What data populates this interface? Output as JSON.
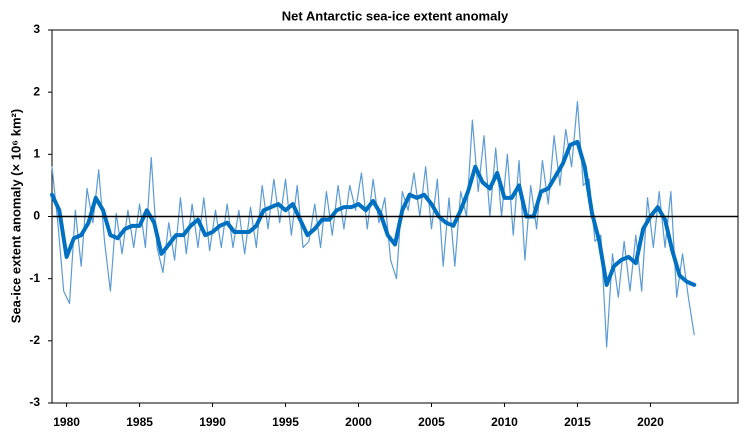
{
  "chart_data": {
    "type": "line",
    "title": "Net Antarctic sea-ice extent anomaly",
    "y_label": "Sea-ice extent anomaly (× 10⁶ km²)",
    "xlim": [
      1979,
      2026
    ],
    "xticks": [
      1980,
      1985,
      1990,
      1995,
      2000,
      2005,
      2010,
      2015,
      2020
    ],
    "ylim": [
      -3,
      3
    ],
    "yticks": [
      -3,
      -2,
      -1,
      0,
      1,
      2,
      3
    ],
    "zero_line": true,
    "series": [
      {
        "color": "#5b9bd5",
        "width": 1.2,
        "x": [
          1979.0,
          1979.4,
          1979.8,
          1980.2,
          1980.6,
          1981.0,
          1981.4,
          1981.8,
          1982.2,
          1982.6,
          1983.0,
          1983.4,
          1983.8,
          1984.2,
          1984.6,
          1985.0,
          1985.4,
          1985.8,
          1986.2,
          1986.6,
          1987.0,
          1987.4,
          1987.8,
          1988.2,
          1988.6,
          1989.0,
          1989.4,
          1989.8,
          1990.2,
          1990.6,
          1991.0,
          1991.4,
          1991.8,
          1992.2,
          1992.6,
          1993.0,
          1993.4,
          1993.8,
          1994.2,
          1994.6,
          1995.0,
          1995.4,
          1995.8,
          1996.2,
          1996.6,
          1997.0,
          1997.4,
          1997.8,
          1998.2,
          1998.6,
          1999.0,
          1999.4,
          1999.8,
          2000.2,
          2000.6,
          2001.0,
          2001.4,
          2001.8,
          2002.2,
          2002.6,
          2003.0,
          2003.4,
          2003.8,
          2004.2,
          2004.6,
          2005.0,
          2005.4,
          2005.8,
          2006.2,
          2006.6,
          2007.0,
          2007.4,
          2007.8,
          2008.2,
          2008.6,
          2009.0,
          2009.4,
          2009.8,
          2010.2,
          2010.6,
          2011.0,
          2011.4,
          2011.8,
          2012.2,
          2012.6,
          2013.0,
          2013.4,
          2013.8,
          2014.2,
          2014.6,
          2015.0,
          2015.4,
          2015.8,
          2016.2,
          2016.6,
          2017.0,
          2017.4,
          2017.8,
          2018.2,
          2018.6,
          2019.0,
          2019.4,
          2019.8,
          2020.2,
          2020.6,
          2021.0,
          2021.4,
          2021.8,
          2022.2,
          2022.6,
          2023.0
        ],
        "values": [
          0.8,
          -0.1,
          -1.2,
          -1.4,
          0.1,
          -0.8,
          0.45,
          -0.1,
          0.75,
          -0.4,
          -1.2,
          0.05,
          -0.6,
          0.1,
          -0.5,
          0.2,
          -0.5,
          0.95,
          -0.5,
          -0.9,
          -0.1,
          -0.7,
          0.3,
          -0.6,
          0.2,
          -0.5,
          0.3,
          -0.55,
          0.1,
          -0.5,
          0.2,
          -0.5,
          0.1,
          -0.6,
          0.15,
          -0.5,
          0.5,
          -0.2,
          0.6,
          -0.1,
          0.6,
          -0.3,
          0.5,
          -0.5,
          -0.4,
          0.2,
          -0.5,
          0.4,
          -0.3,
          0.5,
          -0.2,
          0.5,
          0.1,
          0.7,
          -0.2,
          0.6,
          -0.1,
          0.3,
          -0.7,
          -1.0,
          0.4,
          0.1,
          0.7,
          0.0,
          0.8,
          -0.2,
          0.6,
          -0.8,
          0.3,
          -0.8,
          0.4,
          0.0,
          1.55,
          0.4,
          1.3,
          0.0,
          1.1,
          0.0,
          1.0,
          -0.3,
          0.9,
          -0.7,
          0.5,
          -0.2,
          0.9,
          0.2,
          1.3,
          0.5,
          1.4,
          0.8,
          1.85,
          0.5,
          0.6,
          -0.4,
          -0.3,
          -2.1,
          -0.6,
          -1.3,
          -0.4,
          -1.2,
          -0.3,
          -1.2,
          0.3,
          -0.5,
          0.4,
          -0.5,
          0.4,
          -1.3,
          -0.6,
          -1.3,
          -1.9
        ]
      },
      {
        "color": "#0070c0",
        "width": 4,
        "x": [
          1979.0,
          1979.5,
          1980.0,
          1980.5,
          1981.0,
          1981.5,
          1982.0,
          1982.5,
          1983.0,
          1983.5,
          1984.0,
          1984.5,
          1985.0,
          1985.5,
          1986.0,
          1986.5,
          1987.0,
          1987.5,
          1988.0,
          1988.5,
          1989.0,
          1989.5,
          1990.0,
          1990.5,
          1991.0,
          1991.5,
          1992.0,
          1992.5,
          1993.0,
          1993.5,
          1994.0,
          1994.5,
          1995.0,
          1995.5,
          1996.0,
          1996.5,
          1997.0,
          1997.5,
          1998.0,
          1998.5,
          1999.0,
          1999.5,
          2000.0,
          2000.5,
          2001.0,
          2001.5,
          2002.0,
          2002.5,
          2003.0,
          2003.5,
          2004.0,
          2004.5,
          2005.0,
          2005.5,
          2006.0,
          2006.5,
          2007.0,
          2007.5,
          2008.0,
          2008.5,
          2009.0,
          2009.5,
          2010.0,
          2010.5,
          2011.0,
          2011.5,
          2012.0,
          2012.5,
          2013.0,
          2013.5,
          2014.0,
          2014.5,
          2015.0,
          2015.5,
          2016.0,
          2016.5,
          2017.0,
          2017.5,
          2018.0,
          2018.5,
          2019.0,
          2019.5,
          2020.0,
          2020.5,
          2021.0,
          2021.5,
          2022.0,
          2022.5,
          2023.0
        ],
        "values": [
          0.35,
          0.1,
          -0.65,
          -0.35,
          -0.3,
          -0.1,
          0.3,
          0.1,
          -0.3,
          -0.35,
          -0.2,
          -0.15,
          -0.15,
          0.1,
          -0.1,
          -0.6,
          -0.45,
          -0.3,
          -0.3,
          -0.15,
          -0.05,
          -0.3,
          -0.25,
          -0.15,
          -0.1,
          -0.25,
          -0.25,
          -0.25,
          -0.15,
          0.1,
          0.15,
          0.2,
          0.1,
          0.2,
          -0.05,
          -0.3,
          -0.2,
          -0.05,
          -0.05,
          0.1,
          0.15,
          0.15,
          0.2,
          0.1,
          0.25,
          0.05,
          -0.3,
          -0.45,
          0.1,
          0.35,
          0.3,
          0.35,
          0.2,
          0.0,
          -0.1,
          -0.15,
          0.1,
          0.4,
          0.8,
          0.55,
          0.45,
          0.7,
          0.3,
          0.3,
          0.5,
          0.0,
          0.0,
          0.4,
          0.45,
          0.65,
          0.85,
          1.15,
          1.2,
          0.8,
          0.05,
          -0.4,
          -1.1,
          -0.8,
          -0.7,
          -0.65,
          -0.75,
          -0.2,
          0.0,
          0.15,
          -0.05,
          -0.55,
          -0.95,
          -1.05,
          -1.1
        ]
      }
    ]
  }
}
